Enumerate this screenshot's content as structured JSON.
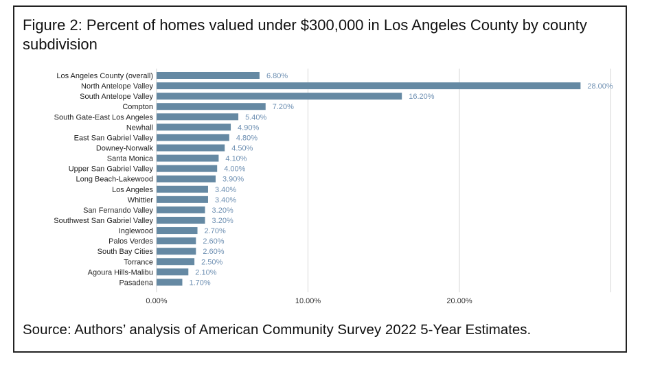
{
  "figure": {
    "title": "Figure 2: Percent of homes valued under $300,000 in Los Angeles County by county subdivision",
    "source": "Source: Authors’ analysis of American Community Survey 2022 5-Year Estimates."
  },
  "chart_data": {
    "type": "bar",
    "orientation": "horizontal",
    "title": "Figure 2: Percent of homes valued under $300,000 in Los Angeles County by county subdivision",
    "xlabel": "",
    "ylabel": "",
    "unit": "%",
    "xlim": [
      0,
      30
    ],
    "grid": true,
    "legend": "none",
    "bar_color": "#6589a3",
    "label_color": "#6d8fb2",
    "categories": [
      "Los Angeles County (overall)",
      "North Antelope Valley",
      "South Antelope Valley",
      "Compton",
      "South Gate-East Los Angeles",
      "Newhall",
      "East San Gabriel Valley",
      "Downey-Norwalk",
      "Santa Monica",
      "Upper San Gabriel Valley",
      "Long Beach-Lakewood",
      "Los Angeles",
      "Whittier",
      "San Fernando Valley",
      "Southwest San Gabriel Valley",
      "Inglewood",
      "Palos Verdes",
      "South Bay Cities",
      "Torrance",
      "Agoura Hills-Malibu",
      "Pasadena"
    ],
    "values": [
      6.8,
      28.0,
      16.2,
      7.2,
      5.4,
      4.9,
      4.8,
      4.5,
      4.1,
      4.0,
      3.9,
      3.4,
      3.4,
      3.2,
      3.2,
      2.7,
      2.6,
      2.6,
      2.5,
      2.1,
      1.7
    ],
    "value_labels": [
      "6.80%",
      "28.00%",
      "16.20%",
      "7.20%",
      "5.40%",
      "4.90%",
      "4.80%",
      "4.50%",
      "4.10%",
      "4.00%",
      "3.90%",
      "3.40%",
      "3.40%",
      "3.20%",
      "3.20%",
      "2.70%",
      "2.60%",
      "2.60%",
      "2.50%",
      "2.10%",
      "1.70%"
    ],
    "x_ticks": [
      0,
      10,
      20
    ],
    "x_tick_labels": [
      "0.00%",
      "10.00%",
      "20.00%"
    ]
  }
}
